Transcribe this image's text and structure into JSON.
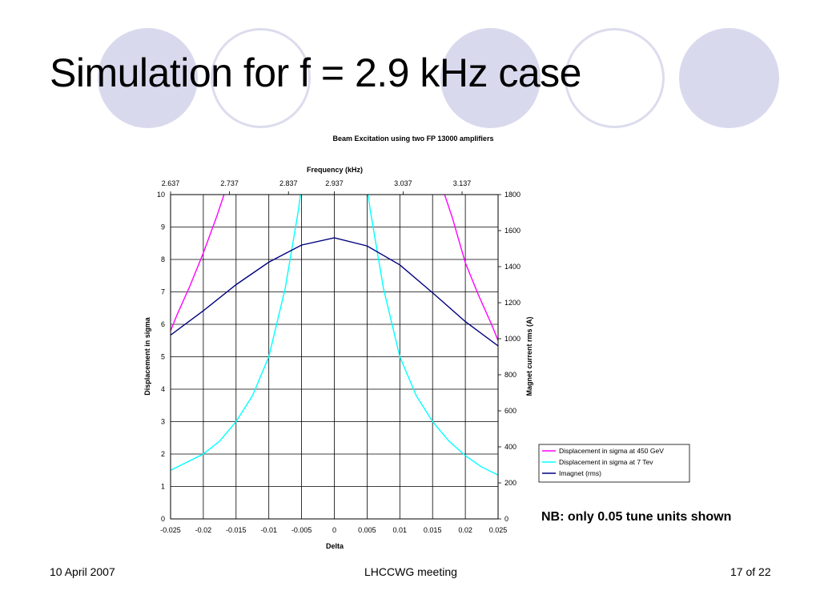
{
  "slide": {
    "title": "Simulation for f = 2.9 kHz case",
    "note": "NB: only 0.05 tune units shown",
    "footer": {
      "date": "10 April 2007",
      "event": "LHCCWG meeting",
      "page": "17 of 22"
    }
  },
  "colors": {
    "decor_fill": "#d9d9ee",
    "decor_ring": "#dcdcee",
    "series_450gev": "#ff00ff",
    "series_7tev": "#00ffff",
    "series_imagnet": "#000080"
  },
  "chart_data": {
    "type": "line",
    "title": "Beam Excitation using two FP 13000 amplifiers",
    "xlabel": "Delta",
    "x2label": "Frequency (kHz)",
    "ylabel": "Displacement in sigma",
    "y2label": "Magnet current rms (A)",
    "xlim": [
      -0.025,
      0.025
    ],
    "ylim": [
      0,
      10
    ],
    "y2lim": [
      0,
      1800
    ],
    "xticks": [
      "-0.025",
      "-0.02",
      "-0.015",
      "-0.01",
      "-0.005",
      "0",
      "0.005",
      "0.01",
      "0.015",
      "0.02",
      "0.025"
    ],
    "x2ticks": [
      "2.637",
      "2.737",
      "2.837",
      "2.937",
      "3.037",
      "3.137"
    ],
    "x2_tick_delta": [
      -0.025,
      -0.016,
      -0.007,
      0.0,
      0.0105,
      0.0195
    ],
    "yticks": [
      "0",
      "1",
      "2",
      "3",
      "4",
      "5",
      "6",
      "7",
      "8",
      "9",
      "10"
    ],
    "y2ticks": [
      "0",
      "200",
      "400",
      "600",
      "800",
      "1000",
      "1200",
      "1400",
      "1600",
      "1800"
    ],
    "grid": true,
    "legend_position": "right",
    "series": [
      {
        "name": "Displacement in sigma at 450 GeV",
        "axis": "left",
        "x": [
          -0.025,
          -0.024,
          -0.022,
          -0.02,
          -0.018,
          -0.0165,
          -0.0155,
          null,
          0.0165,
          0.018,
          0.02,
          0.022,
          0.024,
          0.025
        ],
        "y": [
          5.8,
          6.3,
          7.2,
          8.2,
          9.3,
          10.2,
          11.0,
          null,
          10.2,
          9.3,
          7.9,
          6.9,
          6.0,
          5.5
        ]
      },
      {
        "name": "Displacement in sigma at 7 Tev",
        "axis": "left",
        "x": [
          -0.025,
          -0.0225,
          -0.02,
          -0.0175,
          -0.015,
          -0.0125,
          -0.01,
          -0.0075,
          -0.0055,
          -0.0045,
          null,
          0.0045,
          0.0055,
          0.0075,
          0.01,
          0.0125,
          0.015,
          0.0175,
          0.02,
          0.0225,
          0.025
        ],
        "y": [
          1.5,
          1.75,
          2.0,
          2.4,
          3.0,
          3.8,
          5.0,
          7.1,
          9.5,
          11.0,
          null,
          11.0,
          9.5,
          7.1,
          5.0,
          3.8,
          3.0,
          2.4,
          1.95,
          1.6,
          1.35
        ]
      },
      {
        "name": "Imagnet (rms)",
        "axis": "right",
        "x": [
          -0.025,
          -0.02,
          -0.015,
          -0.01,
          -0.005,
          0.0,
          0.005,
          0.01,
          0.015,
          0.02,
          0.025
        ],
        "y": [
          1020,
          1155,
          1300,
          1425,
          1520,
          1560,
          1515,
          1410,
          1255,
          1095,
          960
        ]
      }
    ]
  }
}
